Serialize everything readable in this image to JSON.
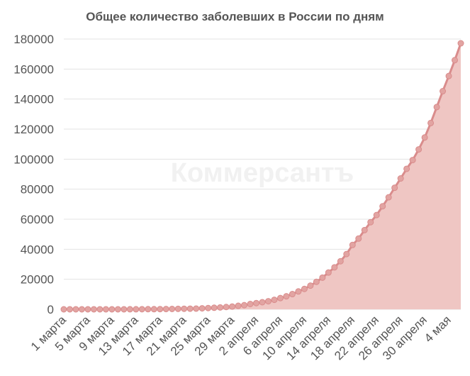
{
  "chart_data": {
    "type": "area",
    "title": "Общее количество заболевших в России по дням",
    "watermark": "Коммерсантъ",
    "xlabel": "",
    "ylabel": "",
    "ylim": [
      0,
      180000
    ],
    "yticks": [
      0,
      20000,
      40000,
      60000,
      80000,
      100000,
      120000,
      140000,
      160000,
      180000
    ],
    "grid": true,
    "colors": {
      "line": "#d98c8c",
      "fill": "#efc6c3",
      "grid": "#e3e3e3",
      "text": "#555555"
    },
    "xtick_labels": [
      "1 марта",
      "5 марта",
      "9 марта",
      "13 марта",
      "17 марта",
      "21 марта",
      "25 марта",
      "29 марта",
      "2 апреля",
      "6 апреля",
      "10 апреля",
      "14 апреля",
      "18 апреля",
      "22 апреля",
      "26 апреля",
      "30 апреля",
      "4 мая"
    ],
    "x": [
      "1 марта",
      "2 марта",
      "3 марта",
      "4 марта",
      "5 марта",
      "6 марта",
      "7 марта",
      "8 марта",
      "9 марта",
      "10 марта",
      "11 марта",
      "12 марта",
      "13 марта",
      "14 марта",
      "15 марта",
      "16 марта",
      "17 марта",
      "18 марта",
      "19 марта",
      "20 марта",
      "21 марта",
      "22 марта",
      "23 марта",
      "24 марта",
      "25 марта",
      "26 марта",
      "27 марта",
      "28 марта",
      "29 марта",
      "30 марта",
      "31 марта",
      "1 апреля",
      "2 апреля",
      "3 апреля",
      "4 апреля",
      "5 апреля",
      "6 апреля",
      "7 апреля",
      "8 апреля",
      "9 апреля",
      "10 апреля",
      "11 апреля",
      "12 апреля",
      "13 апреля",
      "14 апреля",
      "15 апреля",
      "16 апреля",
      "17 апреля",
      "18 апреля",
      "19 апреля",
      "20 апреля",
      "21 апреля",
      "22 апреля",
      "23 апреля",
      "24 апреля",
      "25 апреля",
      "26 апреля",
      "27 апреля",
      "28 апреля",
      "29 апреля",
      "30 апреля",
      "1 мая",
      "2 мая",
      "3 мая",
      "4 мая",
      "5 мая",
      "6 мая"
    ],
    "values": [
      2,
      3,
      3,
      3,
      4,
      4,
      10,
      17,
      17,
      20,
      28,
      34,
      45,
      63,
      93,
      114,
      147,
      199,
      253,
      306,
      367,
      438,
      495,
      658,
      840,
      1036,
      1264,
      1534,
      1836,
      2337,
      2777,
      3548,
      4149,
      4731,
      5389,
      6343,
      7497,
      8672,
      10131,
      11917,
      13584,
      15770,
      18328,
      21102,
      24490,
      27938,
      32008,
      36793,
      42853,
      47121,
      52763,
      57999,
      62773,
      68622,
      74588,
      80949,
      87147,
      93558,
      99399,
      106498,
      114431,
      124054,
      134686,
      145268,
      155370,
      165929,
      177160
    ]
  }
}
